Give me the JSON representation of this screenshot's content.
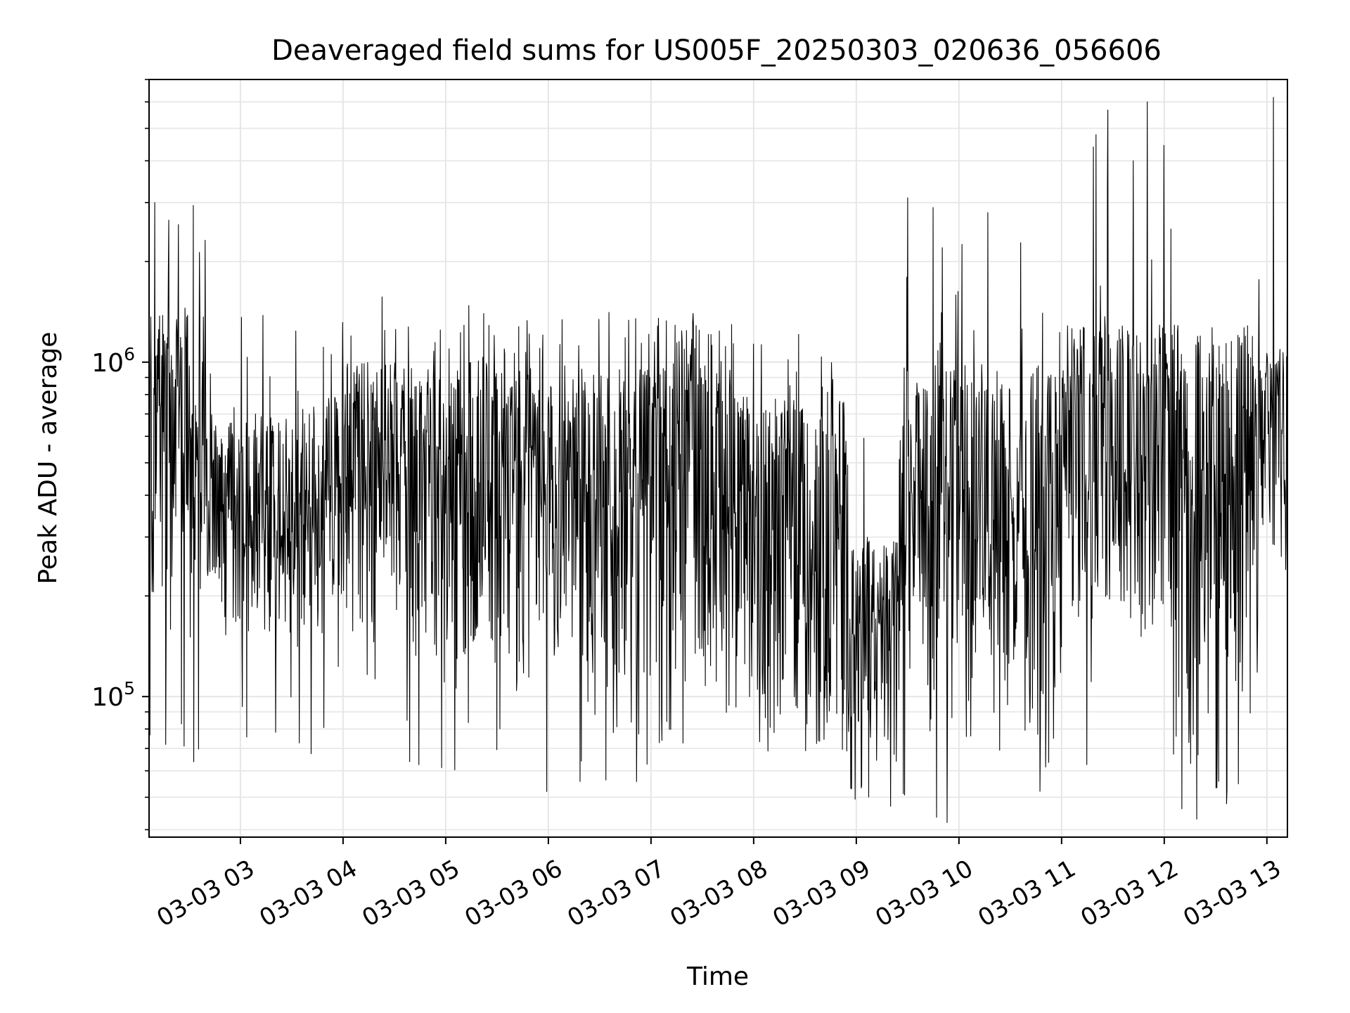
{
  "chart_data": {
    "type": "line",
    "title": "Deaveraged field sums for US005F_20250303_020636_056606",
    "xlabel": "Time",
    "ylabel": "Peak ADU - average",
    "x_axis": {
      "kind": "datetime",
      "start": "2025-03-03T02:06:36",
      "end": "2025-03-03T13:12:00",
      "tick_labels": [
        "03-03 03",
        "03-03 04",
        "03-03 05",
        "03-03 06",
        "03-03 07",
        "03-03 08",
        "03-03 09",
        "03-03 10",
        "03-03 11",
        "03-03 12",
        "03-03 13"
      ],
      "tick_rotation_deg": 30
    },
    "y_axis": {
      "scale": "log",
      "ylim": [
        38000,
        7000000
      ],
      "major_ticks": [
        {
          "value": 100000,
          "base": "10",
          "exponent": "5"
        },
        {
          "value": 1000000,
          "base": "10",
          "exponent": "6"
        }
      ]
    },
    "grid": true,
    "legend": "none",
    "series": [
      {
        "color": "#000000",
        "segments": [
          {
            "start": "2025-03-03T02:06:36",
            "end": "2025-03-03T02:40:00",
            "floor": 170000,
            "ceiling": 1400000,
            "min": 60000,
            "max": 3000000
          },
          {
            "start": "2025-03-03T02:40:00",
            "end": "2025-03-03T03:50:00",
            "floor": 130000,
            "ceiling": 700000,
            "min": 62000,
            "max": 1500000
          },
          {
            "start": "2025-03-03T03:50:00",
            "end": "2025-03-03T04:50:00",
            "floor": 150000,
            "ceiling": 1000000,
            "min": 62000,
            "max": 1600000
          },
          {
            "start": "2025-03-03T04:50:00",
            "end": "2025-03-03T06:00:00",
            "floor": 110000,
            "ceiling": 1100000,
            "min": 57000,
            "max": 1600000
          },
          {
            "start": "2025-03-03T06:00:00",
            "end": "2025-03-03T07:00:00",
            "floor": 100000,
            "ceiling": 950000,
            "min": 52000,
            "max": 1450000
          },
          {
            "start": "2025-03-03T07:00:00",
            "end": "2025-03-03T07:50:00",
            "floor": 95000,
            "ceiling": 1300000,
            "min": 72000,
            "max": 1400000
          },
          {
            "start": "2025-03-03T07:50:00",
            "end": "2025-03-03T08:55:00",
            "floor": 75000,
            "ceiling": 800000,
            "min": 66000,
            "max": 1350000
          },
          {
            "start": "2025-03-03T08:55:00",
            "end": "2025-03-03T09:25:00",
            "floor": 55000,
            "ceiling": 300000,
            "min": 47000,
            "max": 650000
          },
          {
            "start": "2025-03-03T09:25:00",
            "end": "2025-03-03T10:20:00",
            "floor": 100000,
            "ceiling": 1000000,
            "min": 42000,
            "max": 3100000
          },
          {
            "start": "2025-03-03T10:20:00",
            "end": "2025-03-03T11:00:00",
            "floor": 70000,
            "ceiling": 1000000,
            "min": 52000,
            "max": 2800000
          },
          {
            "start": "2025-03-03T11:00:00",
            "end": "2025-03-03T12:10:00",
            "floor": 150000,
            "ceiling": 1300000,
            "min": 62000,
            "max": 6000000
          },
          {
            "start": "2025-03-03T12:10:00",
            "end": "2025-03-03T12:55:00",
            "floor": 60000,
            "ceiling": 1200000,
            "min": 43000,
            "max": 1400000
          },
          {
            "start": "2025-03-03T12:55:00",
            "end": "2025-03-03T13:12:00",
            "floor": 250000,
            "ceiling": 1100000,
            "min": 190000,
            "max": 6500000
          }
        ],
        "notable_peaks": [
          {
            "x": "2025-03-03T02:10:00",
            "y": 3000000
          },
          {
            "x": "2025-03-03T09:30:00",
            "y": 3100000
          },
          {
            "x": "2025-03-03T09:45:00",
            "y": 2900000
          },
          {
            "x": "2025-03-03T10:17:00",
            "y": 2800000
          },
          {
            "x": "2025-03-03T11:42:00",
            "y": 4000000
          },
          {
            "x": "2025-03-03T11:50:00",
            "y": 6000000
          },
          {
            "x": "2025-03-03T12:04:00",
            "y": 2500000
          },
          {
            "x": "2025-03-03T13:12:00",
            "y": 6500000
          }
        ],
        "notable_dips": [
          {
            "x": "2025-03-03T05:59:00",
            "y": 52000
          },
          {
            "x": "2025-03-03T09:20:00",
            "y": 47000
          },
          {
            "x": "2025-03-03T09:53:00",
            "y": 42000
          },
          {
            "x": "2025-03-03T12:19:00",
            "y": 43000
          }
        ]
      }
    ]
  }
}
